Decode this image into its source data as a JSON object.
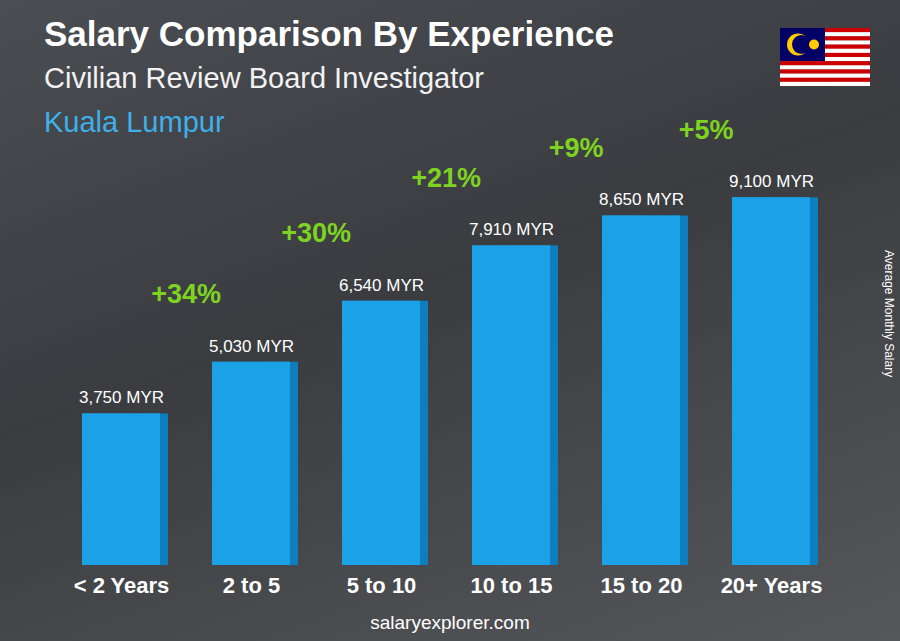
{
  "chart_data": {
    "type": "bar",
    "title": "Salary Comparison By Experience",
    "subtitle": [
      "Civilian Review Board Investigator",
      "Kuala Lumpur"
    ],
    "ylabel": "Average Monthly Salary",
    "source": "salaryexplorer.com",
    "categories": [
      "< 2 Years",
      "2 to 5",
      "5 to 10",
      "10 to 15",
      "15 to 20",
      "20+ Years"
    ],
    "values": [
      3750,
      5030,
      6540,
      7910,
      8650,
      9100
    ],
    "value_labels": [
      "3,750 MYR",
      "5,030 MYR",
      "6,540 MYR",
      "7,910 MYR",
      "8,650 MYR",
      "9,100 MYR"
    ],
    "annotations": [
      "+34%",
      "+30%",
      "+21%",
      "+9%",
      "+5%"
    ],
    "color": "#1ba1e6",
    "ylim": [
      0,
      10000
    ],
    "grid": false,
    "data_labels": true,
    "tick_labels": "x"
  }
}
